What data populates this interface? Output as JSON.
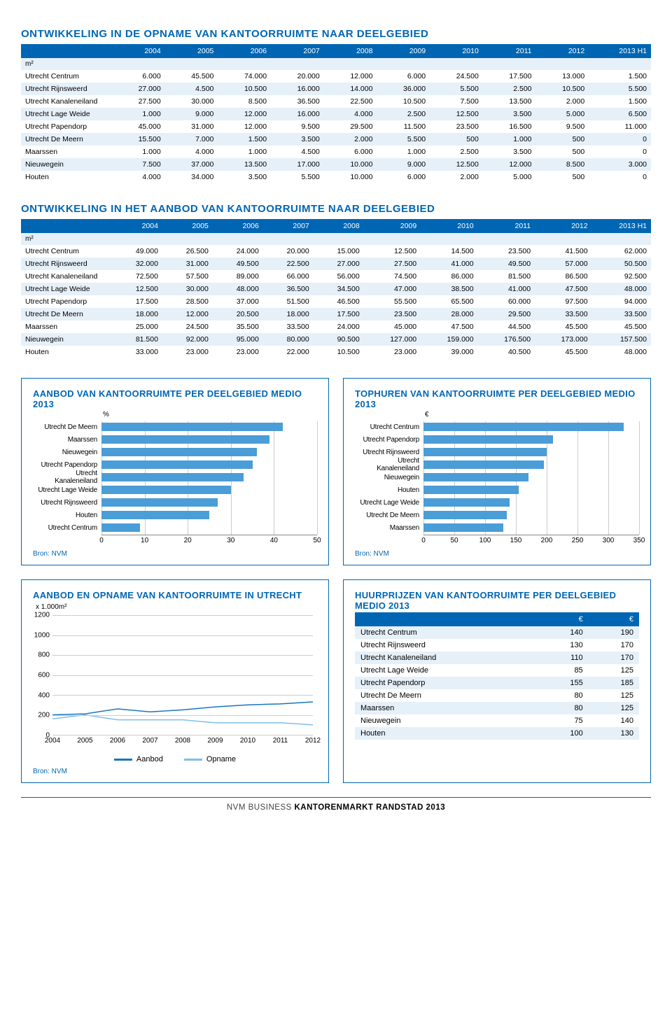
{
  "colors": {
    "brand": "#0066b3",
    "bar_fill": "#4a9dd6",
    "row_alt": "#e6f0f9",
    "line_aanbod": "#1976c1",
    "line_opname": "#7fbfe8",
    "grid": "#cccccc"
  },
  "table1": {
    "title": "ONTWIKKELING IN DE OPNAME VAN KANTOORRUIMTE NAAR DEELGEBIED",
    "unit": "m²",
    "years": [
      "2004",
      "2005",
      "2006",
      "2007",
      "2008",
      "2009",
      "2010",
      "2011",
      "2012",
      "2013 H1"
    ],
    "rows": [
      {
        "label": "Utrecht Centrum",
        "v": [
          "6.000",
          "45.500",
          "74.000",
          "20.000",
          "12.000",
          "6.000",
          "24.500",
          "17.500",
          "13.000",
          "1.500"
        ]
      },
      {
        "label": "Utrecht Rijnsweerd",
        "v": [
          "27.000",
          "4.500",
          "10.500",
          "16.000",
          "14.000",
          "36.000",
          "5.500",
          "2.500",
          "10.500",
          "5.500"
        ]
      },
      {
        "label": "Utrecht Kanaleneiland",
        "v": [
          "27.500",
          "30.000",
          "8.500",
          "36.500",
          "22.500",
          "10.500",
          "7.500",
          "13.500",
          "2.000",
          "1.500"
        ]
      },
      {
        "label": "Utrecht Lage Weide",
        "v": [
          "1.000",
          "9.000",
          "12.000",
          "16.000",
          "4.000",
          "2.500",
          "12.500",
          "3.500",
          "5.000",
          "6.500"
        ]
      },
      {
        "label": "Utrecht Papendorp",
        "v": [
          "45.000",
          "31.000",
          "12.000",
          "9.500",
          "29.500",
          "11.500",
          "23.500",
          "16.500",
          "9.500",
          "11.000"
        ]
      },
      {
        "label": "Utrecht De Meern",
        "v": [
          "15.500",
          "7.000",
          "1.500",
          "3.500",
          "2.000",
          "5.500",
          "500",
          "1.000",
          "500",
          "0"
        ]
      },
      {
        "label": "Maarssen",
        "v": [
          "1.000",
          "4.000",
          "1.000",
          "4.500",
          "6.000",
          "1.000",
          "2.500",
          "3.500",
          "500",
          "0"
        ]
      },
      {
        "label": "Nieuwegein",
        "v": [
          "7.500",
          "37.000",
          "13.500",
          "17.000",
          "10.000",
          "9.000",
          "12.500",
          "12.000",
          "8.500",
          "3.000"
        ]
      },
      {
        "label": "Houten",
        "v": [
          "4.000",
          "34.000",
          "3.500",
          "5.500",
          "10.000",
          "6.000",
          "2.000",
          "5.000",
          "500",
          "0"
        ]
      }
    ]
  },
  "table2": {
    "title": "ONTWIKKELING IN HET AANBOD VAN KANTOORRUIMTE NAAR DEELGEBIED",
    "unit": "m²",
    "years": [
      "2004",
      "2005",
      "2006",
      "2007",
      "2008",
      "2009",
      "2010",
      "2011",
      "2012",
      "2013 H1"
    ],
    "rows": [
      {
        "label": "Utrecht Centrum",
        "v": [
          "49.000",
          "26.500",
          "24.000",
          "20.000",
          "15.000",
          "12.500",
          "14.500",
          "23.500",
          "41.500",
          "62.000"
        ]
      },
      {
        "label": "Utrecht Rijnsweerd",
        "v": [
          "32.000",
          "31.000",
          "49.500",
          "22.500",
          "27.000",
          "27.500",
          "41.000",
          "49.500",
          "57.000",
          "50.500"
        ]
      },
      {
        "label": "Utrecht Kanaleneiland",
        "v": [
          "72.500",
          "57.500",
          "89.000",
          "66.000",
          "56.000",
          "74.500",
          "86.000",
          "81.500",
          "86.500",
          "92.500"
        ]
      },
      {
        "label": "Utrecht Lage Weide",
        "v": [
          "12.500",
          "30.000",
          "48.000",
          "36.500",
          "34.500",
          "47.000",
          "38.500",
          "41.000",
          "47.500",
          "48.000"
        ]
      },
      {
        "label": "Utrecht Papendorp",
        "v": [
          "17.500",
          "28.500",
          "37.000",
          "51.500",
          "46.500",
          "55.500",
          "65.500",
          "60.000",
          "97.500",
          "94.000"
        ]
      },
      {
        "label": "Utrecht De Meern",
        "v": [
          "18.000",
          "12.000",
          "20.500",
          "18.000",
          "17.500",
          "23.500",
          "28.000",
          "29.500",
          "33.500",
          "33.500"
        ]
      },
      {
        "label": "Maarssen",
        "v": [
          "25.000",
          "24.500",
          "35.500",
          "33.500",
          "24.000",
          "45.000",
          "47.500",
          "44.500",
          "45.500",
          "45.500"
        ]
      },
      {
        "label": "Nieuwegein",
        "v": [
          "81.500",
          "92.000",
          "95.000",
          "80.000",
          "90.500",
          "127.000",
          "159.000",
          "176.500",
          "173.000",
          "157.500"
        ]
      },
      {
        "label": "Houten",
        "v": [
          "33.000",
          "23.000",
          "23.000",
          "22.000",
          "10.500",
          "23.000",
          "39.000",
          "40.500",
          "45.500",
          "48.000"
        ]
      }
    ]
  },
  "chart_aanbod": {
    "title": "AANBOD VAN KANTOORRUIMTE PER DEELGEBIED MEDIO 2013",
    "unit": "%",
    "type": "hbar",
    "xmax": 50,
    "xticks": [
      0,
      10,
      20,
      30,
      40,
      50
    ],
    "bar_color": "#4a9dd6",
    "items": [
      {
        "label": "Utrecht De Meern",
        "value": 42
      },
      {
        "label": "Maarssen",
        "value": 39
      },
      {
        "label": "Nieuwegein",
        "value": 36
      },
      {
        "label": "Utrecht Papendorp",
        "value": 35
      },
      {
        "label": "Utrecht Kanaleneiland",
        "value": 33
      },
      {
        "label": "Utrecht Lage Weide",
        "value": 30
      },
      {
        "label": "Utrecht Rijnsweerd",
        "value": 27
      },
      {
        "label": "Houten",
        "value": 25
      },
      {
        "label": "Utrecht Centrum",
        "value": 9
      }
    ],
    "source": "Bron: NVM"
  },
  "chart_tophuren": {
    "title": "TOPHUREN VAN KANTOORRUIMTE PER DEELGEBIED MEDIO 2013",
    "unit": "€",
    "type": "hbar",
    "xmax": 350,
    "xticks": [
      0,
      50,
      100,
      150,
      200,
      250,
      300,
      350
    ],
    "bar_color": "#4a9dd6",
    "items": [
      {
        "label": "Utrecht Centrum",
        "value": 325
      },
      {
        "label": "Utrecht Papendorp",
        "value": 210
      },
      {
        "label": "Utrecht Rijnsweerd",
        "value": 200
      },
      {
        "label": "Utrecht Kanaleneiland",
        "value": 195
      },
      {
        "label": "Nieuwegein",
        "value": 170
      },
      {
        "label": "Houten",
        "value": 155
      },
      {
        "label": "Utrecht Lage Weide",
        "value": 140
      },
      {
        "label": "Utrecht De Meern",
        "value": 135
      },
      {
        "label": "Maarssen",
        "value": 130
      }
    ],
    "source": "Bron: NVM"
  },
  "chart_line": {
    "title": "AANBOD EN OPNAME VAN KANTOORRUIMTE IN UTRECHT",
    "unit": "x 1.000m²",
    "type": "line",
    "ymax": 1200,
    "yticks": [
      0,
      200,
      400,
      600,
      800,
      1000,
      1200
    ],
    "xlabels": [
      "2004",
      "2005",
      "2006",
      "2007",
      "2008",
      "2009",
      "2010",
      "2011",
      "2012"
    ],
    "series": [
      {
        "name": "Aanbod",
        "color": "#1976c1",
        "values": [
          200,
          210,
          260,
          230,
          250,
          280,
          300,
          310,
          330
        ]
      },
      {
        "name": "Opname",
        "color": "#7fbfe8",
        "values": [
          160,
          200,
          150,
          150,
          150,
          120,
          120,
          120,
          100
        ]
      }
    ],
    "source": "Bron: NVM",
    "legend": [
      "Aanbod",
      "Opname"
    ]
  },
  "table_prices": {
    "title": "HUURPRIJZEN VAN KANTOORRUIMTE PER DEELGEBIED MEDIO 2013",
    "cols": [
      "€",
      "€"
    ],
    "rows": [
      {
        "label": "Utrecht Centrum",
        "low": "140",
        "high": "190"
      },
      {
        "label": "Utrecht Rijnsweerd",
        "low": "130",
        "high": "170"
      },
      {
        "label": "Utrecht Kanaleneiland",
        "low": "110",
        "high": "170"
      },
      {
        "label": "Utrecht Lage Weide",
        "low": "85",
        "high": "125"
      },
      {
        "label": "Utrecht Papendorp",
        "low": "155",
        "high": "185"
      },
      {
        "label": "Utrecht De Meern",
        "low": "80",
        "high": "125"
      },
      {
        "label": "Maarssen",
        "low": "80",
        "high": "125"
      },
      {
        "label": "Nieuwegein",
        "low": "75",
        "high": "140"
      },
      {
        "label": "Houten",
        "low": "100",
        "high": "130"
      }
    ]
  },
  "footer": {
    "prefix": "NVM BUSINESS ",
    "strong": "KANTORENMARKT RANDSTAD 2013"
  }
}
